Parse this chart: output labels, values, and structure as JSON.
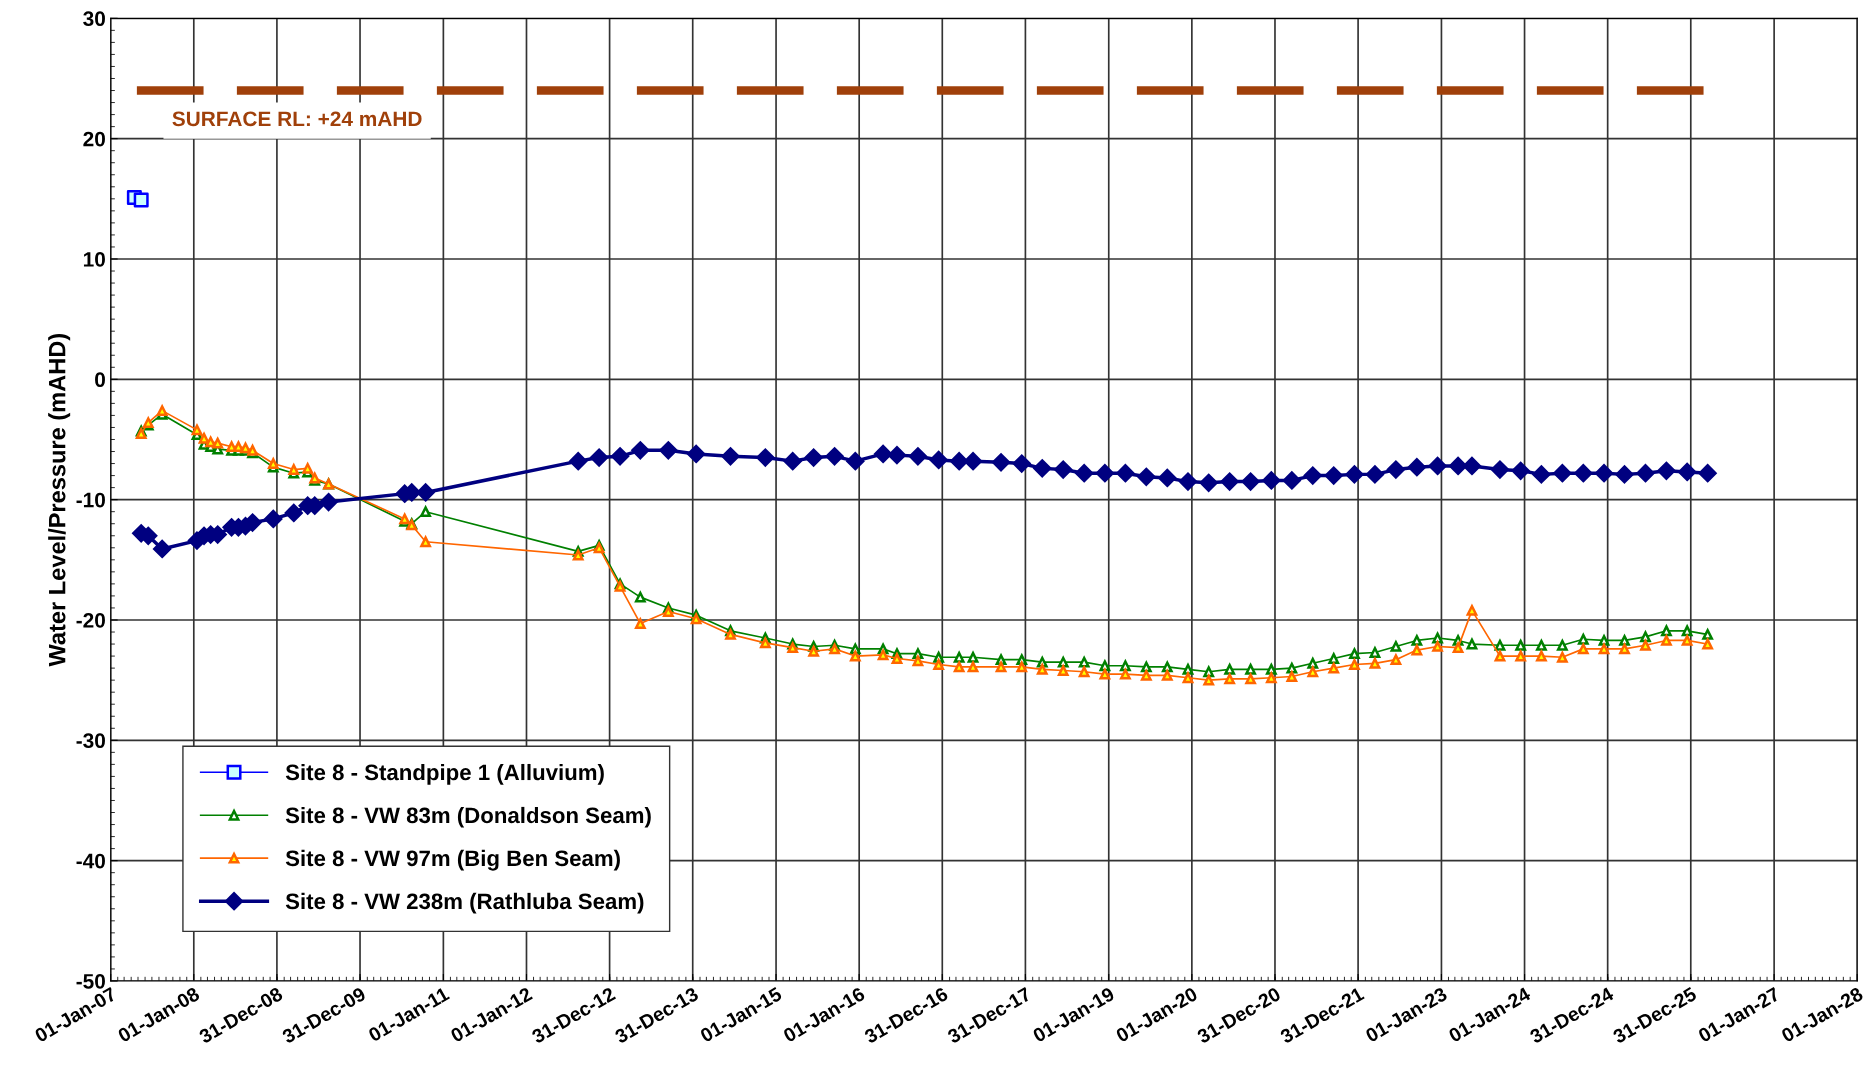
{
  "chart_data": {
    "type": "line",
    "ylabel": "Water Level/Pressure (mAHD)",
    "x": [
      "2007-05",
      "2007-06",
      "2007-08",
      "2008-01",
      "2008-02",
      "2008-03",
      "2008-04",
      "2008-06",
      "2008-07",
      "2008-08",
      "2008-09",
      "2008-12",
      "2009-03",
      "2009-05",
      "2009-06",
      "2009-08",
      "2010-07",
      "2010-08",
      "2010-10",
      "2012-08",
      "2012-11",
      "2013-02",
      "2013-05",
      "2013-09",
      "2014-01",
      "2014-06",
      "2014-11",
      "2015-03",
      "2015-06",
      "2015-09",
      "2015-12",
      "2016-04",
      "2016-06",
      "2016-09",
      "2016-12",
      "2017-03",
      "2017-05",
      "2017-09",
      "2017-12",
      "2018-03",
      "2018-06",
      "2018-09",
      "2018-12",
      "2019-03",
      "2019-06",
      "2019-09",
      "2019-12",
      "2020-03",
      "2020-06",
      "2020-09",
      "2020-12",
      "2021-03",
      "2021-06",
      "2021-09",
      "2021-12",
      "2022-03",
      "2022-06",
      "2022-09",
      "2022-12",
      "2023-03",
      "2023-05",
      "2023-09",
      "2023-12",
      "2024-03",
      "2024-06",
      "2024-09",
      "2024-12",
      "2025-03",
      "2025-06",
      "2025-09",
      "2025-12",
      "2026-03"
    ],
    "series": [
      {
        "name": "Site 8 - Standpipe 1 (Alluvium)",
        "color": "#0000ff",
        "type": "scatter",
        "marker": "square",
        "x": [
          "2007-04",
          "2007-05"
        ],
        "values": [
          15.1,
          14.9
        ]
      },
      {
        "name": "Site 8 - VW 83m (Donaldson Seam)",
        "color": "#008000",
        "marker": "triangle",
        "values": [
          -4.3,
          -3.8,
          -2.9,
          -4.6,
          -5.4,
          -5.6,
          -5.8,
          -5.9,
          -5.9,
          -5.9,
          -6.1,
          -7.3,
          -7.8,
          -7.7,
          -8.4,
          -8.7,
          -11.8,
          -12.0,
          -11.0,
          -14.3,
          -13.8,
          -17.0,
          -18.1,
          -19.0,
          -19.6,
          -20.9,
          -21.5,
          -22.0,
          -22.2,
          -22.1,
          -22.4,
          -22.4,
          -22.8,
          -22.8,
          -23.1,
          -23.1,
          -23.1,
          -23.3,
          -23.3,
          -23.5,
          -23.5,
          -23.5,
          -23.8,
          -23.8,
          -23.9,
          -23.9,
          -24.1,
          -24.3,
          -24.1,
          -24.1,
          -24.1,
          -24.0,
          -23.6,
          -23.2,
          -22.8,
          -22.7,
          -22.2,
          -21.7,
          -21.5,
          -21.7,
          -22.0,
          -22.1,
          -22.1,
          -22.1,
          -22.1,
          -21.6,
          -21.7,
          -21.7,
          -21.4,
          -20.9,
          -20.9,
          -21.2
        ]
      },
      {
        "name": "Site 8 - VW 97m (Big Ben Seam)",
        "color": "#ff6600",
        "marker": "triangle",
        "values": [
          -4.5,
          -3.6,
          -2.6,
          -4.2,
          -4.9,
          -5.2,
          -5.3,
          -5.6,
          -5.6,
          -5.7,
          -5.9,
          -7.0,
          -7.5,
          -7.4,
          -8.2,
          -8.7,
          -11.6,
          -12.1,
          -13.5,
          -14.6,
          -14.0,
          -17.2,
          -20.3,
          -19.3,
          -19.9,
          -21.2,
          -21.9,
          -22.3,
          -22.6,
          -22.4,
          -23.0,
          -22.9,
          -23.2,
          -23.4,
          -23.7,
          -23.9,
          -23.9,
          -23.9,
          -23.9,
          -24.1,
          -24.2,
          -24.3,
          -24.5,
          -24.5,
          -24.6,
          -24.6,
          -24.8,
          -25.0,
          -24.9,
          -24.9,
          -24.8,
          -24.7,
          -24.3,
          -24.0,
          -23.7,
          -23.6,
          -23.3,
          -22.5,
          -22.2,
          -22.3,
          -19.2,
          -23.0,
          -23.0,
          -23.0,
          -23.1,
          -22.4,
          -22.4,
          -22.4,
          -22.1,
          -21.7,
          -21.7,
          -22.0
        ]
      },
      {
        "name": "Site 8 - VW 238m (Rathluba Seam)",
        "color": "#000080",
        "marker": "diamond",
        "values": [
          -12.8,
          -13.0,
          -14.1,
          -13.4,
          -13.0,
          -12.9,
          -12.9,
          -12.3,
          -12.3,
          -12.2,
          -11.9,
          -11.6,
          -11.1,
          -10.5,
          -10.5,
          -10.2,
          -9.5,
          -9.4,
          -9.4,
          -6.8,
          -6.5,
          -6.4,
          -5.9,
          -5.9,
          -6.2,
          -6.4,
          -6.5,
          -6.8,
          -6.5,
          -6.4,
          -6.8,
          -6.2,
          -6.3,
          -6.4,
          -6.7,
          -6.8,
          -6.8,
          -6.9,
          -7.0,
          -7.4,
          -7.5,
          -7.8,
          -7.8,
          -7.8,
          -8.1,
          -8.2,
          -8.5,
          -8.6,
          -8.5,
          -8.5,
          -8.4,
          -8.4,
          -8.0,
          -8.0,
          -7.9,
          -7.9,
          -7.5,
          -7.3,
          -7.2,
          -7.2,
          -7.2,
          -7.5,
          -7.6,
          -7.9,
          -7.8,
          -7.8,
          -7.8,
          -7.9,
          -7.8,
          -7.6,
          -7.7,
          -7.8
        ]
      }
    ],
    "ref_lines": [
      {
        "axis": "y",
        "value": 24,
        "label": "SURFACE RL: +24 mAHD",
        "color": "#a0400a",
        "line_style": "dashed"
      }
    ],
    "xlim": [
      "2007-01-01",
      "2028-01-01"
    ],
    "xticks": [
      {
        "value": "2007-01-01",
        "label": "01-Jan-07"
      },
      {
        "value": "2008-01-01",
        "label": "01-Jan-08"
      },
      {
        "value": "2008-12-31",
        "label": "31-Dec-08"
      },
      {
        "value": "2009-12-31",
        "label": "31-Dec-09"
      },
      {
        "value": "2011-01-01",
        "label": "01-Jan-11"
      },
      {
        "value": "2012-01-01",
        "label": "01-Jan-12"
      },
      {
        "value": "2012-12-31",
        "label": "31-Dec-12"
      },
      {
        "value": "2013-12-31",
        "label": "31-Dec-13"
      },
      {
        "value": "2015-01-01",
        "label": "01-Jan-15"
      },
      {
        "value": "2016-01-01",
        "label": "01-Jan-16"
      },
      {
        "value": "2016-12-31",
        "label": "31-Dec-16"
      },
      {
        "value": "2017-12-31",
        "label": "31-Dec-17"
      },
      {
        "value": "2019-01-01",
        "label": "01-Jan-19"
      },
      {
        "value": "2020-01-01",
        "label": "01-Jan-20"
      },
      {
        "value": "2020-12-31",
        "label": "31-Dec-20"
      },
      {
        "value": "2021-12-31",
        "label": "31-Dec-21"
      },
      {
        "value": "2023-01-01",
        "label": "01-Jan-23"
      },
      {
        "value": "2024-01-01",
        "label": "01-Jan-24"
      },
      {
        "value": "2024-12-31",
        "label": "31-Dec-24"
      },
      {
        "value": "2025-12-31",
        "label": "31-Dec-25"
      },
      {
        "value": "2027-01-01",
        "label": "01-Jan-27"
      },
      {
        "value": "2028-01-01",
        "label": "01-Jan-28"
      }
    ],
    "ylim": [
      -50,
      30
    ],
    "yticks": [
      -50,
      -40,
      -30,
      -20,
      -10,
      0,
      10,
      20,
      30
    ],
    "grid": true,
    "legend": "bottom left",
    "line_style": "solid"
  }
}
